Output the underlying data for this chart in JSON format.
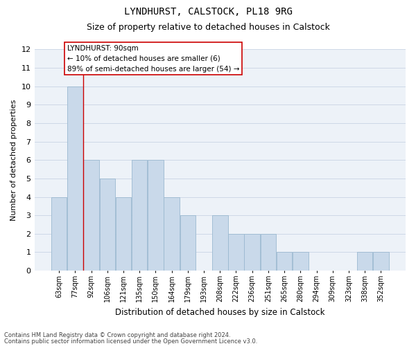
{
  "title_line1": "LYNDHURST, CALSTOCK, PL18 9RG",
  "title_line2": "Size of property relative to detached houses in Calstock",
  "xlabel": "Distribution of detached houses by size in Calstock",
  "ylabel": "Number of detached properties",
  "categories": [
    "63sqm",
    "77sqm",
    "92sqm",
    "106sqm",
    "121sqm",
    "135sqm",
    "150sqm",
    "164sqm",
    "179sqm",
    "193sqm",
    "208sqm",
    "222sqm",
    "236sqm",
    "251sqm",
    "265sqm",
    "280sqm",
    "294sqm",
    "309sqm",
    "323sqm",
    "338sqm",
    "352sqm"
  ],
  "values": [
    4,
    10,
    6,
    5,
    4,
    6,
    6,
    4,
    3,
    0,
    3,
    2,
    2,
    2,
    1,
    1,
    0,
    0,
    0,
    1,
    1
  ],
  "bar_color": "#c9d9ea",
  "bar_edge_color": "#9ab8d0",
  "highlight_bar_index": 2,
  "highlight_line_color": "#cc0000",
  "ylim": [
    0,
    12
  ],
  "yticks": [
    0,
    1,
    2,
    3,
    4,
    5,
    6,
    7,
    8,
    9,
    10,
    11,
    12
  ],
  "annotation_text": "LYNDHURST: 90sqm\n← 10% of detached houses are smaller (6)\n89% of semi-detached houses are larger (54) →",
  "annotation_box_facecolor": "#ffffff",
  "annotation_box_edgecolor": "#cc0000",
  "footnote1": "Contains HM Land Registry data © Crown copyright and database right 2024.",
  "footnote2": "Contains public sector information licensed under the Open Government Licence v3.0.",
  "grid_color": "#c8d4e4",
  "bg_color": "#edf2f8",
  "title1_fontsize": 10,
  "title2_fontsize": 9,
  "ylabel_fontsize": 8,
  "xlabel_fontsize": 8.5,
  "ytick_fontsize": 8,
  "xtick_fontsize": 7,
  "annot_fontsize": 7.5,
  "footnote_fontsize": 6
}
